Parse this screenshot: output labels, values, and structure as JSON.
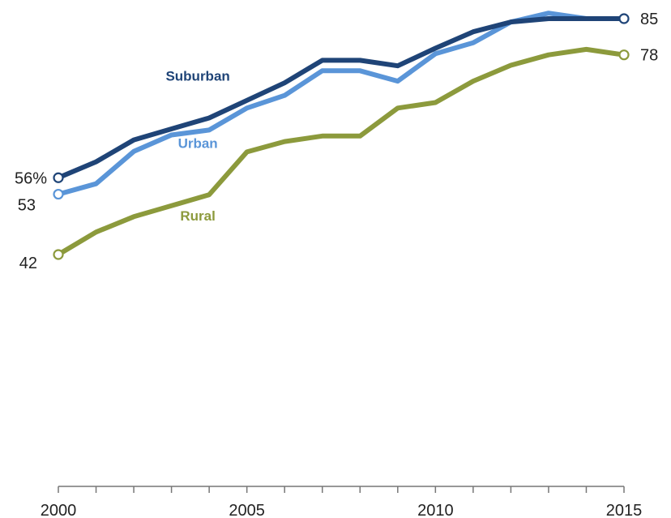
{
  "colors": {
    "Suburban": "#1f4477",
    "Urban": "#5a95d8",
    "Rural": "#8c9a3c",
    "axis": "#777777"
  },
  "chart_data": {
    "type": "line",
    "title": "",
    "xlabel": "",
    "ylabel": "",
    "x": [
      2000,
      2001,
      2002,
      2003,
      2004,
      2005,
      2006,
      2007,
      2008,
      2009,
      2010,
      2011,
      2012,
      2013,
      2014,
      2015
    ],
    "x_ticks": [
      2000,
      2005,
      2010,
      2015
    ],
    "x_tick_labels": [
      "2000",
      "2005",
      "2010",
      "2015"
    ],
    "series": [
      {
        "name": "Suburban",
        "values": [
          56,
          58.9,
          62.9,
          64.9,
          66.9,
          70.1,
          73.3,
          77.4,
          77.4,
          76.4,
          79.6,
          82.6,
          84.4,
          85,
          85,
          85
        ],
        "start_label": "56%",
        "end_label": "85"
      },
      {
        "name": "Urban",
        "values": [
          53,
          54.9,
          60.8,
          63.8,
          64.7,
          68.7,
          71,
          75.5,
          75.5,
          73.6,
          78.6,
          80.6,
          84.4,
          86,
          85,
          85
        ],
        "start_label": "53",
        "end_label": ""
      },
      {
        "name": "Rural",
        "values": [
          42,
          46.1,
          48.9,
          50.9,
          52.9,
          60.7,
          62.6,
          63.6,
          63.6,
          68.7,
          69.7,
          73.6,
          76.5,
          78.4,
          79.4,
          78.4
        ],
        "start_label": "42",
        "end_label": "78"
      }
    ],
    "ylim": [
      0,
      90
    ],
    "grid": false,
    "legend": "none (series labeled inline)"
  }
}
